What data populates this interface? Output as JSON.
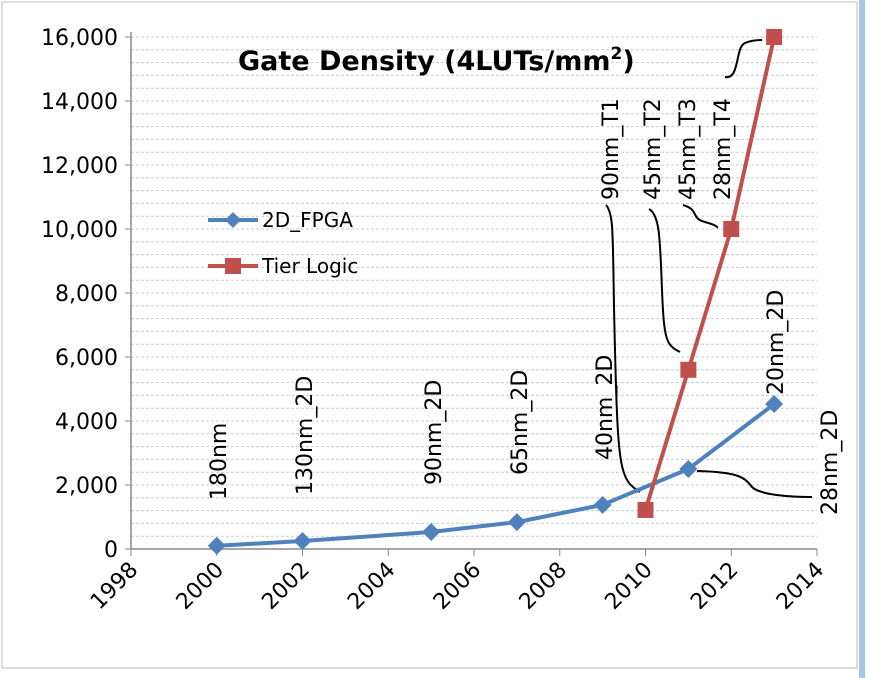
{
  "chart_data": {
    "type": "line",
    "title": "Gate Density (4LUTs/mm²)",
    "title_main": "Gate Density (4LUTs/mm",
    "title_sup": "2",
    "title_end": ")",
    "xlabel": "",
    "ylabel": "",
    "xlim": [
      1998,
      2014
    ],
    "ylim": [
      0,
      16000
    ],
    "xticks": [
      "1998",
      "2000",
      "2002",
      "2004",
      "2006",
      "2008",
      "2010",
      "2012",
      "2014"
    ],
    "yticks": [
      "0",
      "2,000",
      "4,000",
      "6,000",
      "8,000",
      "10,000",
      "12,000",
      "14,000",
      "16,000"
    ],
    "grid": "horizontal dashed",
    "legend_placement": "center-left",
    "series": [
      {
        "name": "2D_FPGA",
        "color": "#4f81bd",
        "marker": "diamond",
        "x": [
          2000,
          2002,
          2005,
          2007,
          2009,
          2011,
          2013
        ],
        "y": [
          100,
          250,
          530,
          840,
          1380,
          2500,
          4530
        ],
        "labels": [
          "180nm",
          "130nm_2D",
          "90nm_2D",
          "65nm_2D",
          "40nm_2D",
          "28nm_2D",
          "20nm_2D"
        ]
      },
      {
        "name": "Tier Logic",
        "color": "#c0504d",
        "marker": "square",
        "x": [
          2010,
          2011,
          2012,
          2013
        ],
        "y": [
          1220,
          5600,
          10000,
          16000
        ],
        "labels": [
          "90nm_T1",
          "45nm_T2",
          "45nm_T3",
          "28nm_T4"
        ]
      }
    ]
  }
}
